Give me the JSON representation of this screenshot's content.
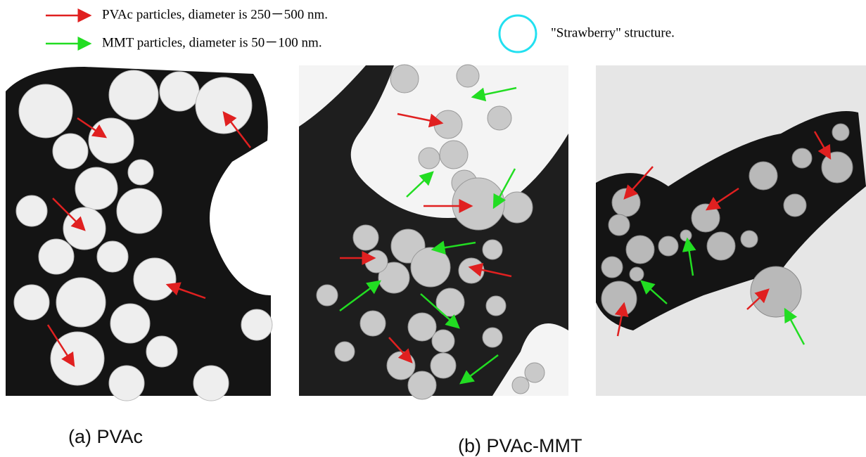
{
  "legend": [
    {
      "label": "PVAc particles, diameter is 250－500 nm."
    },
    {
      "label": "MMT particles, diameter is 50－100 nm."
    },
    {
      "label": "\"Strawberry\" structure."
    }
  ],
  "panels": [
    {
      "caption": "(a) PVAc"
    },
    {
      "caption": "(b) PVAc-MMT"
    }
  ]
}
